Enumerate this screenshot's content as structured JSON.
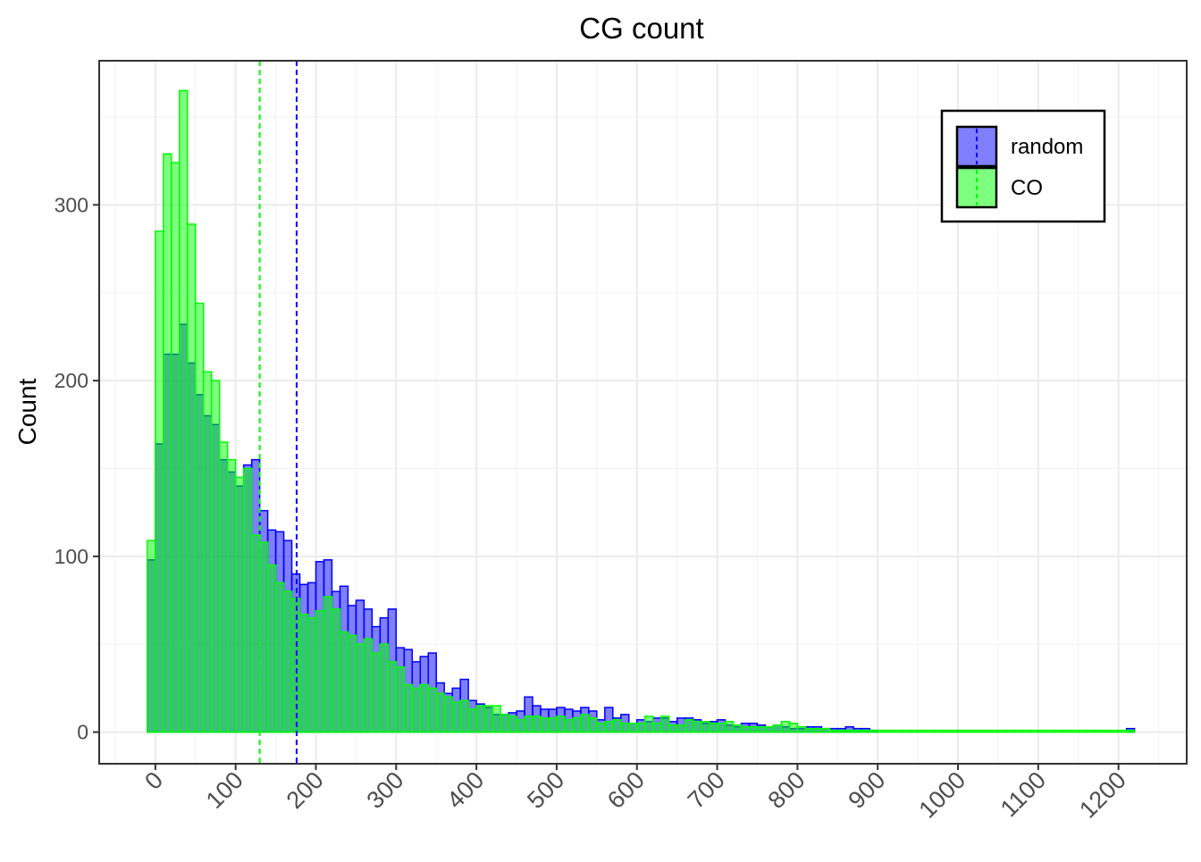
{
  "chart_data": {
    "type": "bar",
    "title": "CG count",
    "xlabel": "",
    "ylabel": "Count",
    "xlim": [
      -70,
      1285
    ],
    "ylim": [
      -18,
      382
    ],
    "bin_width": 10,
    "x_ticks": [
      0,
      100,
      200,
      300,
      400,
      500,
      600,
      700,
      800,
      900,
      1000,
      1100,
      1200
    ],
    "x_tick_labels": [
      "0",
      "100",
      "200",
      "300",
      "400",
      "500",
      "600",
      "700",
      "800",
      "900",
      "1000",
      "1100",
      "1200"
    ],
    "y_ticks": [
      0,
      100,
      200,
      300
    ],
    "y_tick_labels": [
      "0",
      "100",
      "200",
      "300"
    ],
    "grid": true,
    "legend_position": "top-right",
    "series": [
      {
        "name": "random",
        "color": "#0000ff",
        "fill_opacity": 0.5,
        "mean": 176,
        "bin_starts": [
          -10,
          0,
          10,
          20,
          30,
          40,
          50,
          60,
          70,
          80,
          90,
          100,
          110,
          120,
          130,
          140,
          150,
          160,
          170,
          180,
          190,
          200,
          210,
          220,
          230,
          240,
          250,
          260,
          270,
          280,
          290,
          300,
          310,
          320,
          330,
          340,
          350,
          360,
          370,
          380,
          390,
          400,
          410,
          420,
          430,
          440,
          450,
          460,
          470,
          480,
          490,
          500,
          510,
          520,
          530,
          540,
          550,
          560,
          570,
          580,
          590,
          600,
          610,
          620,
          630,
          640,
          650,
          660,
          670,
          680,
          690,
          700,
          710,
          720,
          730,
          740,
          750,
          760,
          770,
          780,
          790,
          800,
          810,
          820,
          830,
          840,
          850,
          860,
          870,
          880,
          890,
          1210
        ],
        "values": [
          98,
          164,
          215,
          215,
          232,
          210,
          192,
          180,
          175,
          155,
          148,
          140,
          152,
          155,
          126,
          115,
          114,
          109,
          90,
          84,
          85,
          97,
          98,
          80,
          83,
          72,
          75,
          70,
          60,
          65,
          70,
          48,
          47,
          40,
          43,
          45,
          28,
          22,
          25,
          30,
          18,
          16,
          14,
          10,
          10,
          11,
          12,
          20,
          15,
          13,
          13,
          14,
          13,
          12,
          14,
          12,
          7,
          14,
          8,
          10,
          5,
          7,
          6,
          8,
          8,
          6,
          8,
          8,
          7,
          5,
          6,
          7,
          4,
          3,
          5,
          5,
          4,
          3,
          4,
          3,
          2,
          2,
          3,
          3,
          2,
          2,
          2,
          3,
          2,
          2,
          1,
          2
        ]
      },
      {
        "name": "CO",
        "color": "#00ff00",
        "fill_opacity": 0.5,
        "mean": 130,
        "bin_starts": [
          -10,
          0,
          10,
          20,
          30,
          40,
          50,
          60,
          70,
          80,
          90,
          100,
          110,
          120,
          130,
          140,
          150,
          160,
          170,
          180,
          190,
          200,
          210,
          220,
          230,
          240,
          250,
          260,
          270,
          280,
          290,
          300,
          310,
          320,
          330,
          340,
          350,
          360,
          370,
          380,
          390,
          400,
          410,
          420,
          430,
          440,
          450,
          460,
          470,
          480,
          490,
          500,
          510,
          520,
          530,
          540,
          550,
          560,
          570,
          580,
          590,
          600,
          610,
          620,
          630,
          640,
          650,
          660,
          670,
          680,
          690,
          700,
          710,
          720,
          730,
          740,
          750,
          760,
          770,
          780,
          790,
          800,
          810,
          820,
          830,
          840,
          850,
          860,
          870,
          880,
          890,
          900,
          910,
          920,
          930,
          940,
          950,
          960,
          970,
          980,
          990,
          1000,
          1010,
          1020,
          1030,
          1040,
          1050,
          1060,
          1070,
          1080,
          1090,
          1100,
          1110,
          1120,
          1130,
          1140,
          1150,
          1160,
          1170,
          1180,
          1190,
          1200,
          1210
        ],
        "values": [
          109,
          285,
          329,
          324,
          365,
          289,
          244,
          205,
          200,
          165,
          155,
          145,
          150,
          112,
          108,
          95,
          85,
          80,
          76,
          67,
          65,
          69,
          77,
          70,
          57,
          55,
          50,
          53,
          45,
          50,
          40,
          37,
          27,
          25,
          27,
          25,
          22,
          20,
          17,
          18,
          13,
          15,
          15,
          15,
          10,
          9,
          7,
          9,
          9,
          8,
          8,
          9,
          7,
          8,
          10,
          8,
          5,
          6,
          7,
          5,
          5,
          5,
          9,
          5,
          9,
          4,
          4,
          7,
          6,
          6,
          5,
          5,
          6,
          4,
          3,
          3,
          3,
          3,
          4,
          6,
          5,
          3,
          2,
          2,
          2,
          1,
          1,
          1,
          1,
          1,
          1,
          1,
          1,
          1,
          1,
          1,
          1,
          1,
          1,
          1,
          1,
          1,
          1,
          1,
          1,
          1,
          1,
          1,
          1,
          1,
          1,
          1,
          1,
          1,
          1,
          1,
          1,
          1,
          1,
          1,
          1,
          1,
          1
        ]
      }
    ]
  }
}
